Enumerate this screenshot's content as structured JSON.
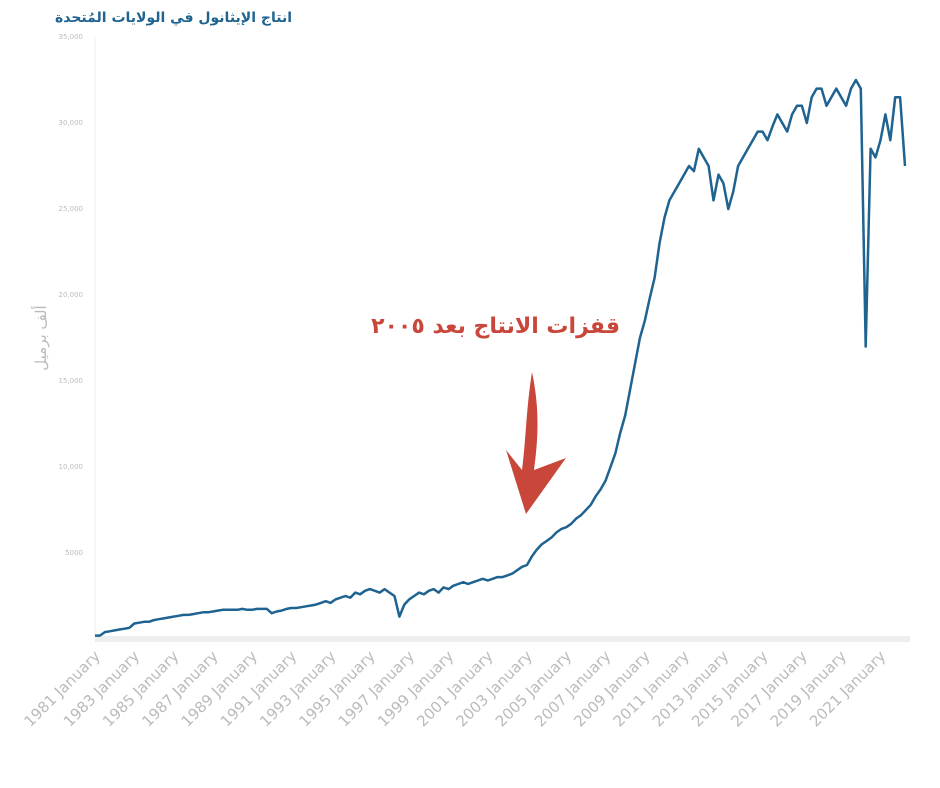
{
  "chart_data": {
    "type": "line",
    "title": "انتاج الإيثانول في الولايات المُتحدة",
    "y_label": "ألف برميل",
    "annotation": "قفزات  الانتاج بعد ٢٠٠٥",
    "ylim": [
      0,
      35000
    ],
    "yticks": [
      {
        "value": 5000,
        "label": "5000"
      },
      {
        "value": 10000,
        "label": "10,000"
      },
      {
        "value": 15000,
        "label": "15,000"
      },
      {
        "value": 20000,
        "label": "20,000"
      },
      {
        "value": 25000,
        "label": "25,000"
      },
      {
        "value": 30000,
        "label": "30,000"
      },
      {
        "value": 35000,
        "label": "35,000"
      }
    ],
    "categories": [
      "1981 January",
      null,
      null,
      null,
      null,
      null,
      null,
      null,
      "1983 January",
      null,
      null,
      null,
      null,
      null,
      null,
      null,
      "1985 January",
      null,
      null,
      null,
      null,
      null,
      null,
      null,
      "1987 January",
      null,
      null,
      null,
      null,
      null,
      null,
      null,
      "1989 January",
      null,
      null,
      null,
      null,
      null,
      null,
      null,
      "1991 January",
      null,
      null,
      null,
      null,
      null,
      null,
      null,
      "1993 January",
      null,
      null,
      null,
      null,
      null,
      null,
      null,
      "1995 January",
      null,
      null,
      null,
      null,
      null,
      null,
      null,
      "1997 January",
      null,
      null,
      null,
      null,
      null,
      null,
      null,
      "1999 January",
      null,
      null,
      null,
      null,
      null,
      null,
      null,
      "2001 January",
      null,
      null,
      null,
      null,
      null,
      null,
      null,
      "2003 January",
      null,
      null,
      null,
      null,
      null,
      null,
      null,
      "2005 January",
      null,
      null,
      null,
      null,
      null,
      null,
      null,
      "2007 January",
      null,
      null,
      null,
      null,
      null,
      null,
      null,
      "2009 January",
      null,
      null,
      null,
      null,
      null,
      null,
      null,
      "2011 January",
      null,
      null,
      null,
      null,
      null,
      null,
      null,
      "2013 January",
      null,
      null,
      null,
      null,
      null,
      null,
      null,
      "2015 January",
      null,
      null,
      null,
      null,
      null,
      null,
      null,
      "2017 January",
      null,
      null,
      null,
      null,
      null,
      null,
      null,
      "2019 January",
      null,
      null,
      null,
      null,
      null,
      null,
      null,
      "2021 January",
      null,
      null,
      null,
      null,
      null
    ],
    "series": [
      {
        "color": "#1f6391",
        "values": [
          200,
          200,
          400,
          450,
          500,
          550,
          600,
          650,
          900,
          950,
          1000,
          1000,
          1100,
          1150,
          1200,
          1250,
          1300,
          1350,
          1400,
          1400,
          1450,
          1500,
          1550,
          1550,
          1600,
          1650,
          1700,
          1700,
          1700,
          1700,
          1750,
          1700,
          1700,
          1750,
          1750,
          1750,
          1500,
          1600,
          1650,
          1750,
          1800,
          1800,
          1850,
          1900,
          1950,
          2000,
          2100,
          2200,
          2100,
          2300,
          2400,
          2500,
          2400,
          2700,
          2600,
          2800,
          2900,
          2800,
          2700,
          2900,
          2700,
          2500,
          1300,
          2000,
          2300,
          2500,
          2700,
          2600,
          2800,
          2900,
          2700,
          3000,
          2900,
          3100,
          3200,
          3300,
          3200,
          3300,
          3400,
          3500,
          3400,
          3500,
          3600,
          3600,
          3700,
          3800,
          4000,
          4200,
          4300,
          4800,
          5200,
          5500,
          5700,
          5900,
          6200,
          6400,
          6500,
          6700,
          7000,
          7200,
          7500,
          7800,
          8300,
          8700,
          9200,
          10000,
          10800,
          12000,
          13000,
          14500,
          16000,
          17500,
          18500,
          19800,
          21000,
          23000,
          24500,
          25500,
          26000,
          26500,
          27000,
          27500,
          27200,
          28500,
          28000,
          27500,
          25500,
          27000,
          26500,
          25000,
          26000,
          27500,
          28000,
          28500,
          29000,
          29500,
          29500,
          29000,
          29800,
          30500,
          30000,
          29500,
          30500,
          31000,
          31000,
          30000,
          31500,
          32000,
          32000,
          31000,
          31500,
          32000,
          31500,
          31000,
          32000,
          32500,
          32000,
          17000,
          28500,
          28000,
          29000,
          30500,
          29000,
          31500,
          31500,
          27500
        ]
      }
    ]
  }
}
